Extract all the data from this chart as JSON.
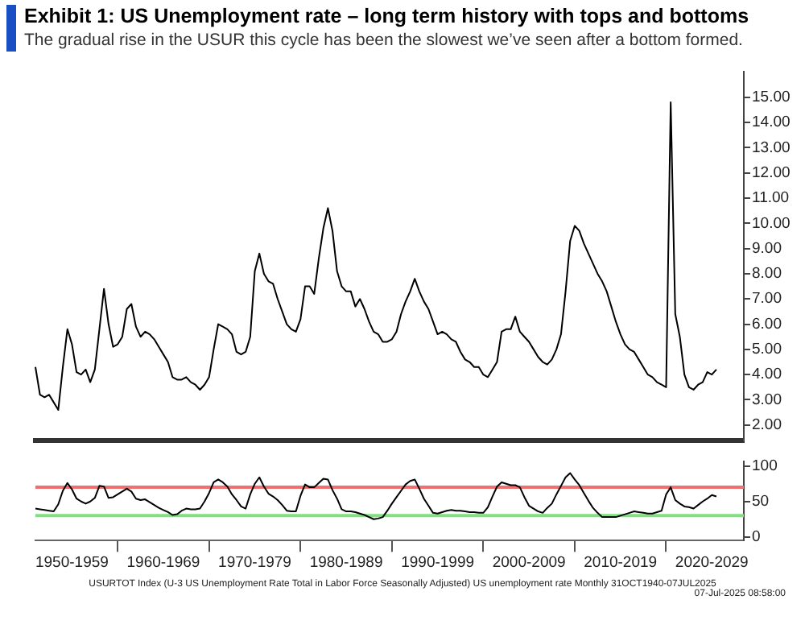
{
  "chart_data": [
    {
      "type": "line",
      "title": "Exhibit 1: US Unemployment rate – long term history with tops and bottoms",
      "subtitle": "The gradual rise in the USUR this cycle has been the slowest we’ve seen after a bottom formed.",
      "ylim": [
        1.4,
        16
      ],
      "yticks": [
        {
          "value": 2,
          "label": "2.00"
        },
        {
          "value": 3,
          "label": "3.00"
        },
        {
          "value": 4,
          "label": "4.00"
        },
        {
          "value": 5,
          "label": "5.00"
        },
        {
          "value": 6,
          "label": "6.00"
        },
        {
          "value": 7,
          "label": "7.00"
        },
        {
          "value": 8,
          "label": "8.00"
        },
        {
          "value": 9,
          "label": "9.00"
        },
        {
          "value": 10,
          "label": "10.00"
        },
        {
          "value": 11,
          "label": "11.00"
        },
        {
          "value": 12,
          "label": "12.00"
        },
        {
          "value": 13,
          "label": "13.00"
        },
        {
          "value": 14,
          "label": "14.00"
        },
        {
          "value": 15,
          "label": "15.00"
        }
      ],
      "tick_labels": "y",
      "grid": false,
      "legend": false,
      "marker": "none",
      "series": [
        {
          "color": "#000000",
          "values": [
            4.3,
            3.2,
            3.1,
            3.2,
            2.9,
            2.6,
            4.3,
            5.8,
            5.2,
            4.1,
            4.0,
            4.2,
            3.7,
            4.2,
            5.8,
            7.4,
            6.0,
            5.1,
            5.2,
            5.5,
            6.6,
            6.8,
            5.9,
            5.5,
            5.7,
            5.6,
            5.4,
            5.1,
            4.8,
            4.5,
            3.9,
            3.8,
            3.8,
            3.9,
            3.7,
            3.6,
            3.4,
            3.6,
            3.9,
            5.0,
            6.0,
            5.9,
            5.8,
            5.6,
            4.9,
            4.8,
            4.9,
            5.5,
            8.1,
            8.8,
            8.0,
            7.7,
            7.6,
            7.0,
            6.5,
            6.0,
            5.8,
            5.7,
            6.2,
            7.5,
            7.5,
            7.2,
            8.6,
            9.8,
            10.6,
            9.7,
            8.1,
            7.5,
            7.3,
            7.3,
            6.7,
            7.0,
            6.6,
            6.1,
            5.7,
            5.6,
            5.3,
            5.3,
            5.4,
            5.7,
            6.4,
            6.9,
            7.3,
            7.8,
            7.3,
            6.9,
            6.6,
            6.1,
            5.6,
            5.7,
            5.6,
            5.4,
            5.3,
            4.9,
            4.6,
            4.5,
            4.3,
            4.3,
            4.0,
            3.9,
            4.2,
            4.5,
            5.7,
            5.8,
            5.8,
            6.3,
            5.7,
            5.5,
            5.3,
            5.0,
            4.7,
            4.5,
            4.4,
            4.6,
            5.0,
            5.6,
            7.3,
            9.3,
            9.9,
            9.7,
            9.2,
            8.8,
            8.4,
            8.0,
            7.7,
            7.3,
            6.7,
            6.1,
            5.6,
            5.2,
            5.0,
            4.9,
            4.6,
            4.3,
            4.0,
            3.9,
            3.7,
            3.6,
            3.5,
            14.8,
            6.4,
            5.5,
            4.0,
            3.5,
            3.4,
            3.6,
            3.7,
            4.1,
            4.0,
            4.2,
            null,
            null,
            null,
            null,
            null,
            null
          ]
        }
      ]
    },
    {
      "type": "line",
      "ylim": [
        -5,
        106
      ],
      "yticks": [
        0,
        50,
        100
      ],
      "grid": false,
      "legend": false,
      "marker": "none",
      "categories": [
        null,
        null,
        null,
        null,
        null,
        null,
        null,
        null,
        "1950-1959",
        null,
        null,
        null,
        null,
        null,
        null,
        null,
        null,
        null,
        null,
        null,
        null,
        null,
        null,
        null,
        null,
        null,
        null,
        null,
        "1960-1969",
        null,
        null,
        null,
        null,
        null,
        null,
        null,
        null,
        null,
        null,
        null,
        null,
        null,
        null,
        null,
        null,
        null,
        null,
        null,
        "1970-1979",
        null,
        null,
        null,
        null,
        null,
        null,
        null,
        null,
        null,
        null,
        null,
        null,
        null,
        null,
        null,
        null,
        null,
        null,
        null,
        "1980-1989",
        null,
        null,
        null,
        null,
        null,
        null,
        null,
        null,
        null,
        null,
        null,
        null,
        null,
        null,
        null,
        null,
        null,
        null,
        null,
        "1990-1999",
        null,
        null,
        null,
        null,
        null,
        null,
        null,
        null,
        null,
        null,
        null,
        null,
        null,
        null,
        null,
        null,
        null,
        null,
        null,
        "2000-2009",
        null,
        null,
        null,
        null,
        null,
        null,
        null,
        null,
        null,
        null,
        null,
        null,
        null,
        null,
        null,
        null,
        null,
        null,
        null,
        "2010-2019",
        null,
        null,
        null,
        null,
        null,
        null,
        null,
        null,
        null,
        null,
        null,
        null,
        null,
        null,
        null,
        null,
        null,
        null,
        null,
        "2020-2029",
        null,
        null,
        null,
        null,
        null,
        null,
        null
      ],
      "ref_lines": [
        {
          "axis": "y",
          "value": 70,
          "color": "#f07070"
        },
        {
          "axis": "y",
          "value": 30,
          "color": "#80e080"
        }
      ],
      "annotations": [
        "USURTOT Index (U-3 US Unemployment Rate Total in Labor Force Seasonally Adjusted) US unemployment rate  Monthly 31OCT1940-07JUL2025",
        "07-Jul-2025 08:58:00"
      ],
      "series": [
        {
          "color": "#000000",
          "values": [
            40,
            39,
            38,
            37,
            36,
            46,
            65,
            76,
            67,
            54,
            50,
            47,
            50,
            55,
            72,
            71,
            55,
            56,
            60,
            64,
            68,
            64,
            54,
            52,
            53,
            49,
            45,
            41,
            38,
            35,
            31,
            32,
            37,
            40,
            39,
            39,
            40,
            50,
            62,
            77,
            81,
            77,
            71,
            60,
            52,
            43,
            40,
            60,
            75,
            84,
            71,
            61,
            57,
            52,
            45,
            37,
            36,
            36,
            58,
            74,
            70,
            70,
            76,
            82,
            81,
            66,
            54,
            39,
            36,
            36,
            35,
            33,
            31,
            28,
            25,
            26,
            28,
            37,
            47,
            56,
            65,
            74,
            79,
            81,
            68,
            54,
            44,
            34,
            33,
            35,
            37,
            38,
            37,
            37,
            36,
            35,
            35,
            34,
            34,
            42,
            57,
            71,
            77,
            75,
            73,
            73,
            70,
            56,
            44,
            40,
            36,
            34,
            41,
            47,
            60,
            72,
            84,
            90,
            81,
            73,
            62,
            51,
            41,
            34,
            28,
            28,
            28,
            28,
            30,
            32,
            34,
            36,
            35,
            34,
            33,
            33,
            35,
            37,
            60,
            70,
            52,
            47,
            43,
            42,
            40,
            45,
            50,
            54,
            59,
            57,
            null,
            null,
            null,
            null,
            null,
            null
          ]
        }
      ]
    }
  ]
}
